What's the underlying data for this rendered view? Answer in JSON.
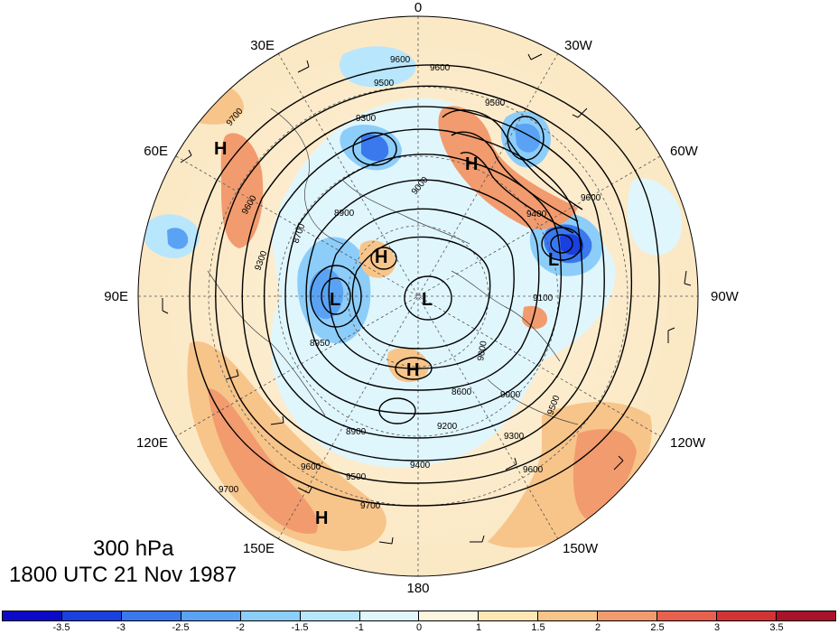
{
  "title": {
    "level": "300 hPa",
    "time": "1800 UTC 21 Nov 1987"
  },
  "longitude_labels": {
    "lon_0": "0",
    "lon_30w": "30W",
    "lon_60w": "60W",
    "lon_90w": "90W",
    "lon_120w": "120W",
    "lon_150w": "150W",
    "lon_180": "180",
    "lon_150e": "150E",
    "lon_120e": "120E",
    "lon_90e": "90E",
    "lon_60e": "60E",
    "lon_30e": "30E"
  },
  "pressure_centers": {
    "h_atlantic": "H",
    "h_asia_west": "H",
    "l_siberia": "L",
    "l_pole": "L",
    "h_pole_left": "H",
    "h_pole_bottom": "H",
    "l_canada": "L",
    "h_pacific": "H"
  },
  "contour_labels": {
    "c9600a": "9600",
    "c9600b": "9600",
    "c9500a": "9500",
    "c9500b": "9500",
    "c9300a": "9300",
    "c9700a": "9700",
    "c9600c": "9600",
    "c9300b": "9300",
    "c8900a": "8900",
    "c8700a": "8700",
    "c8950": "8950",
    "c9000a": "9000",
    "c9400a": "9400",
    "c9600d": "9600",
    "c9300c": "9300",
    "c9500c": "9500",
    "c9200a": "9200",
    "c8900b": "8900",
    "c9000b": "9000",
    "c9600e": "9600",
    "c9500d": "9500",
    "c9700b": "9700",
    "c9400b": "9400",
    "c9600f": "9600",
    "c9700c": "9700",
    "c8600": "8600",
    "c9100": "9100",
    "c9000c": "9000"
  },
  "colorbar": {
    "colors": [
      "#0a0ac8",
      "#1a40e0",
      "#3a78ee",
      "#5aa3f4",
      "#8ccdfa",
      "#b8e6fc",
      "#e0f6fd",
      "#fdf7e2",
      "#fbe6b4",
      "#f7c48a",
      "#f29b6e",
      "#e8614f",
      "#d23434",
      "#a8122a"
    ],
    "ticks": [
      "-3.5",
      "-3",
      "-2.5",
      "-2",
      "-1.5",
      "-1",
      "0",
      "1",
      "1.5",
      "2",
      "2.5",
      "3",
      "3.5"
    ]
  },
  "map_meaning": {
    "projection": "north polar stereographic",
    "shading": "anomaly field, blue negative, red positive",
    "contours": "geopotential height (m)",
    "wind_barbs": true
  }
}
